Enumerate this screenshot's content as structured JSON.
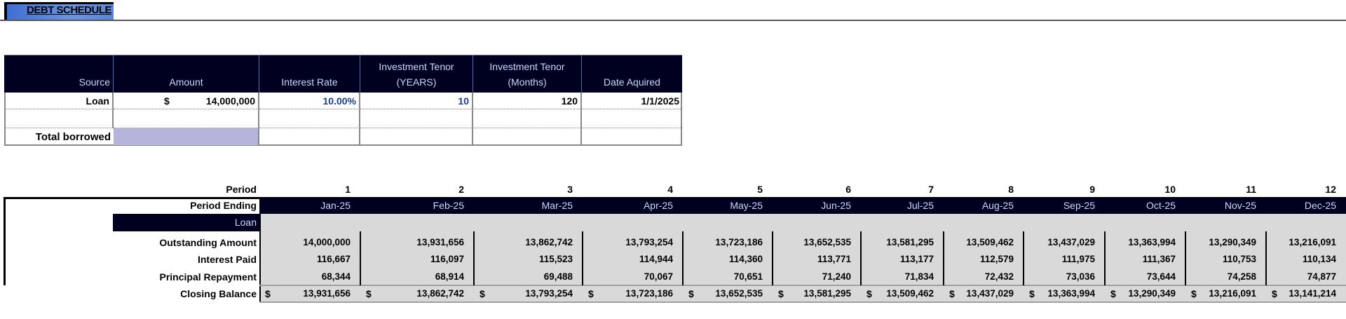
{
  "title": "DEBT SCHEDULE",
  "summary_table": {
    "headers": [
      "Source",
      "Amount",
      "Interest Rate",
      "Investment Tenor (YEARS)",
      "Investment Tenor (Months)",
      "Date Aquired"
    ],
    "header_lines": {
      "source": [
        "",
        "Source"
      ],
      "amount": [
        "",
        "Amount"
      ],
      "rate": [
        "",
        "Interest Rate"
      ],
      "tenor_years": [
        "Investment Tenor",
        "(YEARS)"
      ],
      "tenor_months": [
        "Investment Tenor",
        "(Months)"
      ],
      "date": [
        "",
        "Date Aquired"
      ]
    },
    "rows": [
      {
        "source": "Loan",
        "currency": "$",
        "amount": "14,000,000",
        "rate": "10.00%",
        "tenor_years": "10",
        "tenor_months": "120",
        "date": "1/1/2025"
      }
    ],
    "total_label": "Total borrowed",
    "total_value": ""
  },
  "schedule": {
    "period_label": "Period",
    "period_ending_label": "Period Ending",
    "section_label": "Loan",
    "row_labels": {
      "outstanding": "Outstanding Amount",
      "interest": "Interest Paid",
      "principal": "Principal Repayment",
      "closing": "Closing Balance"
    },
    "currency": "$",
    "columns": [
      {
        "period": "1",
        "ending": "Jan-25",
        "outstanding": "14,000,000",
        "interest": "116,667",
        "principal": "68,344",
        "closing": "13,931,656"
      },
      {
        "period": "2",
        "ending": "Feb-25",
        "outstanding": "13,931,656",
        "interest": "116,097",
        "principal": "68,914",
        "closing": "13,862,742"
      },
      {
        "period": "3",
        "ending": "Mar-25",
        "outstanding": "13,862,742",
        "interest": "115,523",
        "principal": "69,488",
        "closing": "13,793,254"
      },
      {
        "period": "4",
        "ending": "Apr-25",
        "outstanding": "13,793,254",
        "interest": "114,944",
        "principal": "70,067",
        "closing": "13,723,186"
      },
      {
        "period": "5",
        "ending": "May-25",
        "outstanding": "13,723,186",
        "interest": "114,360",
        "principal": "70,651",
        "closing": "13,652,535"
      },
      {
        "period": "6",
        "ending": "Jun-25",
        "outstanding": "13,652,535",
        "interest": "113,771",
        "principal": "71,240",
        "closing": "13,581,295"
      },
      {
        "period": "7",
        "ending": "Jul-25",
        "outstanding": "13,581,295",
        "interest": "113,177",
        "principal": "71,834",
        "closing": "13,509,462"
      },
      {
        "period": "8",
        "ending": "Aug-25",
        "outstanding": "13,509,462",
        "interest": "112,579",
        "principal": "72,432",
        "closing": "13,437,029"
      },
      {
        "period": "9",
        "ending": "Sep-25",
        "outstanding": "13,437,029",
        "interest": "111,975",
        "principal": "73,036",
        "closing": "13,363,994"
      },
      {
        "period": "10",
        "ending": "Oct-25",
        "outstanding": "13,363,994",
        "interest": "111,367",
        "principal": "73,644",
        "closing": "13,290,349"
      },
      {
        "period": "11",
        "ending": "Nov-25",
        "outstanding": "13,290,349",
        "interest": "110,753",
        "principal": "74,258",
        "closing": "13,216,091"
      },
      {
        "period": "12",
        "ending": "Dec-25",
        "outstanding": "13,216,091",
        "interest": "110,134",
        "principal": "74,877",
        "closing": "13,141,214"
      }
    ]
  },
  "colors": {
    "header_bg": "#000020",
    "header_text": "#c9d8ff",
    "data_bg": "#d9d9d9",
    "total_fill": "#b4b4dc",
    "input_blue": "#1a3e8f",
    "title_blue": "#4a7ad6"
  }
}
